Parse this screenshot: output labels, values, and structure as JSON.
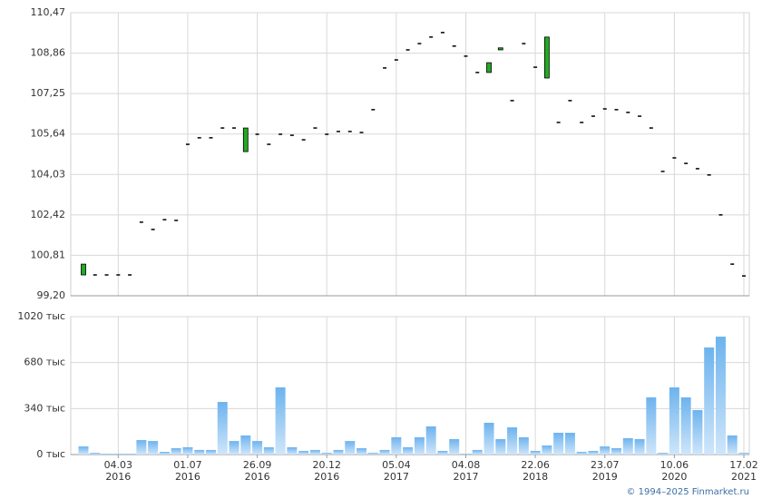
{
  "chart_data": [
    {
      "type": "candlestick",
      "open": [
        100.03,
        100.03,
        100.03,
        100.03,
        100.03,
        102.13,
        101.84,
        102.23,
        102.2,
        105.23,
        105.49,
        105.49,
        105.88,
        105.88,
        104.94,
        105.63,
        105.23,
        105.63,
        105.59,
        105.41,
        105.88,
        105.63,
        105.74,
        105.74,
        105.7,
        106.61,
        108.27,
        108.59,
        108.99,
        109.24,
        109.5,
        109.68,
        109.14,
        108.74,
        108.09,
        108.09,
        108.99,
        106.97,
        109.24,
        108.3,
        107.87,
        106.1,
        106.97,
        106.1,
        106.35,
        106.64,
        106.61,
        106.5,
        106.35,
        105.88,
        104.15,
        104.69,
        104.47,
        104.26,
        104.01,
        102.42,
        100.46,
        99.99
      ],
      "close": [
        100.46,
        100.03,
        100.03,
        100.03,
        100.03,
        102.13,
        101.84,
        102.23,
        102.2,
        105.23,
        105.49,
        105.49,
        105.88,
        105.88,
        105.88,
        105.63,
        105.23,
        105.63,
        105.59,
        105.41,
        105.88,
        105.63,
        105.74,
        105.74,
        105.7,
        106.61,
        108.27,
        108.59,
        108.99,
        109.24,
        109.5,
        109.68,
        109.14,
        108.74,
        108.09,
        108.48,
        109.07,
        106.97,
        109.24,
        108.3,
        109.5,
        106.1,
        106.97,
        106.1,
        106.35,
        106.64,
        106.61,
        106.5,
        106.35,
        105.88,
        104.15,
        104.69,
        104.47,
        104.26,
        104.01,
        102.42,
        100.46,
        99.99
      ],
      "up_color": "#22aa22",
      "ylim": [
        99.2,
        110.47
      ],
      "yticks": [
        {
          "value": 99.2,
          "label": "99,20"
        },
        {
          "value": 100.81,
          "label": "100,81"
        },
        {
          "value": 102.42,
          "label": "102,42"
        },
        {
          "value": 104.03,
          "label": "104,03"
        },
        {
          "value": 105.64,
          "label": "105,64"
        },
        {
          "value": 107.25,
          "label": "107,25"
        },
        {
          "value": 108.86,
          "label": "108,86"
        },
        {
          "value": 110.47,
          "label": "110,47"
        }
      ],
      "grid": true
    },
    {
      "type": "bar",
      "categories": [
        null,
        null,
        null,
        "04.03",
        null,
        null,
        null,
        null,
        null,
        "01.07",
        null,
        null,
        null,
        null,
        null,
        "26.09",
        null,
        null,
        null,
        null,
        null,
        "20.12",
        null,
        null,
        null,
        null,
        null,
        "05.04",
        null,
        null,
        null,
        null,
        null,
        "04.08",
        null,
        null,
        null,
        null,
        null,
        "22.06",
        null,
        null,
        null,
        null,
        null,
        "23.07",
        null,
        null,
        null,
        null,
        null,
        "10.06",
        null,
        null,
        null,
        null,
        null,
        "17.02"
      ],
      "category_years": [
        null,
        null,
        null,
        "2016",
        null,
        null,
        null,
        null,
        null,
        "2016",
        null,
        null,
        null,
        null,
        null,
        "2016",
        null,
        null,
        null,
        null,
        null,
        "2016",
        null,
        null,
        null,
        null,
        null,
        "2017",
        null,
        null,
        null,
        null,
        null,
        "2017",
        null,
        null,
        null,
        null,
        null,
        "2018",
        null,
        null,
        null,
        null,
        null,
        "2019",
        null,
        null,
        null,
        null,
        null,
        "2020",
        null,
        null,
        null,
        null,
        null,
        "2021"
      ],
      "values": [
        60,
        13,
        7,
        7,
        7,
        107,
        100,
        20,
        47,
        54,
        34,
        34,
        389,
        100,
        141,
        100,
        54,
        497,
        54,
        27,
        34,
        13,
        34,
        100,
        47,
        13,
        34,
        128,
        54,
        128,
        208,
        27,
        114,
        7,
        34,
        235,
        114,
        201,
        128,
        27,
        67,
        161,
        161,
        20,
        27,
        60,
        47,
        121,
        114,
        423,
        13,
        497,
        423,
        329,
        792,
        872,
        141,
        13
      ],
      "color": "#7bbcf0",
      "ylim": [
        0,
        1020
      ],
      "yticks": [
        {
          "value": 0,
          "label": "0 тыс"
        },
        {
          "value": 340,
          "label": "340 тыс"
        },
        {
          "value": 680,
          "label": "680 тыс"
        },
        {
          "value": 1020,
          "label": "1020 тыс"
        }
      ],
      "grid": true
    }
  ],
  "footer": "© 1994–2025 Finmarket.ru"
}
